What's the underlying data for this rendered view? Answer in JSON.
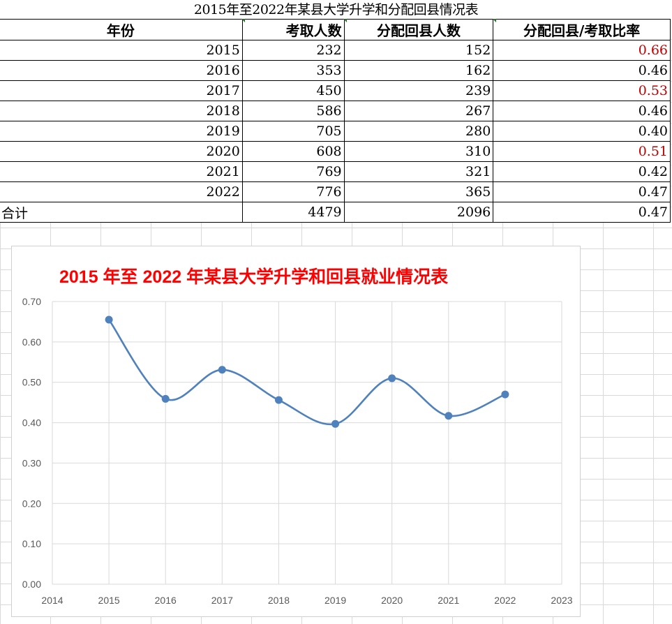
{
  "sheet_title": "2015年至2022年某县大学升学和分配回县情况表",
  "table": {
    "headers": [
      "年份",
      "考取人数",
      "分配回县人数",
      "分配回县/考取比率"
    ],
    "rows": [
      {
        "year": "2015",
        "admitted": "232",
        "returned": "152",
        "ratio": "0.66",
        "highlight": true
      },
      {
        "year": "2016",
        "admitted": "353",
        "returned": "162",
        "ratio": "0.46",
        "highlight": false
      },
      {
        "year": "2017",
        "admitted": "450",
        "returned": "239",
        "ratio": "0.53",
        "highlight": true
      },
      {
        "year": "2018",
        "admitted": "586",
        "returned": "267",
        "ratio": "0.46",
        "highlight": false
      },
      {
        "year": "2019",
        "admitted": "705",
        "returned": "280",
        "ratio": "0.40",
        "highlight": false
      },
      {
        "year": "2020",
        "admitted": "608",
        "returned": "310",
        "ratio": "0.51",
        "highlight": true
      },
      {
        "year": "2021",
        "admitted": "769",
        "returned": "321",
        "ratio": "0.42",
        "highlight": false
      },
      {
        "year": "2022",
        "admitted": "776",
        "returned": "365",
        "ratio": "0.47",
        "highlight": false
      }
    ],
    "total": {
      "label": "合计",
      "admitted": "4479",
      "returned": "2096",
      "ratio": "0.47"
    }
  },
  "chart_data": {
    "type": "scatter",
    "title": "2015 年至 2022 年某县大学升学和回县就业情况表",
    "series": [
      {
        "x": [
          2015,
          2016,
          2017,
          2018,
          2019,
          2020,
          2021,
          2022
        ],
        "y": [
          0.655,
          0.459,
          0.531,
          0.456,
          0.397,
          0.51,
          0.417,
          0.47
        ],
        "color": "#4f81bd",
        "smooth": true
      }
    ],
    "xlim": [
      2014,
      2023
    ],
    "ylim": [
      0,
      0.7
    ],
    "xticks": [
      "2014",
      "2015",
      "2016",
      "2017",
      "2018",
      "2019",
      "2020",
      "2021",
      "2022",
      "2023"
    ],
    "yticks": [
      "0.00",
      "0.10",
      "0.20",
      "0.30",
      "0.40",
      "0.50",
      "0.60",
      "0.70"
    ],
    "grid": true
  }
}
